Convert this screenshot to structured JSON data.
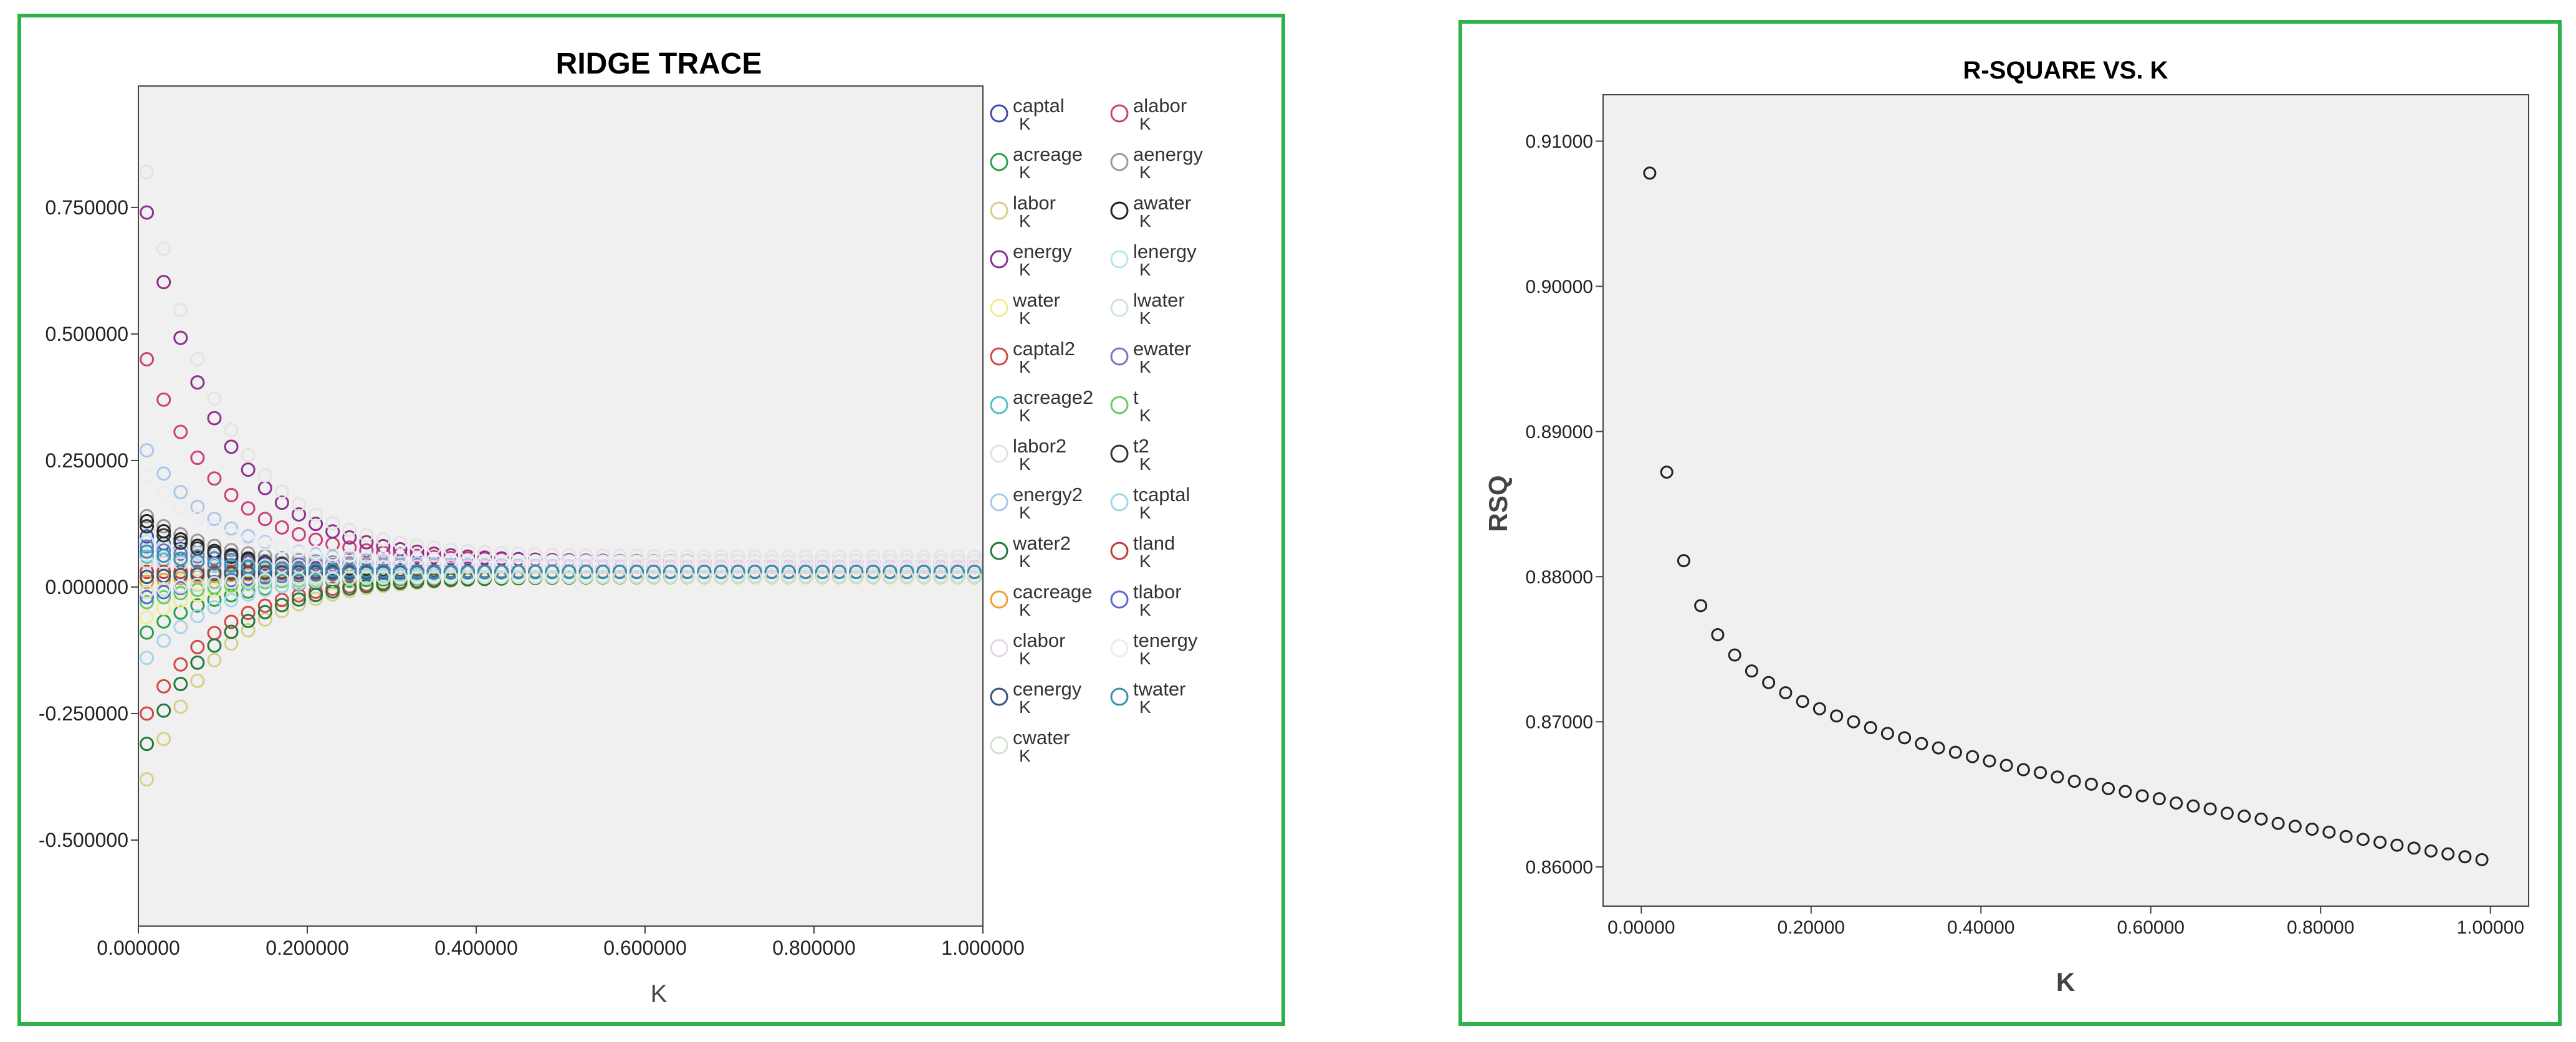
{
  "chart_data": [
    {
      "type": "scatter",
      "title": "RIDGE TRACE",
      "xlabel": "K",
      "ylabel": "",
      "xlim": [
        0.0,
        1.0
      ],
      "ylim": [
        -0.67,
        0.99
      ],
      "xticks": [
        0.0,
        0.2,
        0.4,
        0.6,
        0.8,
        1.0
      ],
      "xtick_labels": [
        "0.000000",
        "0.200000",
        "0.400000",
        "0.600000",
        "0.800000",
        "1.000000"
      ],
      "yticks": [
        0.75,
        0.5,
        0.25,
        0.0,
        -0.25,
        -0.5
      ],
      "ytick_labels": [
        "0.750000",
        "0.500000",
        "0.250000",
        "0.000000",
        "-0.250000",
        "-0.500000"
      ],
      "x": [
        0.01,
        0.03,
        0.05,
        0.07,
        0.09,
        0.11,
        0.13,
        0.15,
        0.17,
        0.19,
        0.21,
        0.23,
        0.25,
        0.27,
        0.29,
        0.31,
        0.33,
        0.35,
        0.37,
        0.39,
        0.41,
        0.43,
        0.45,
        0.47,
        0.49,
        0.51,
        0.53,
        0.55,
        0.57,
        0.59,
        0.61,
        0.63,
        0.65,
        0.67,
        0.69,
        0.71,
        0.73,
        0.75,
        0.77,
        0.79,
        0.81,
        0.83,
        0.85,
        0.87,
        0.89,
        0.91,
        0.93,
        0.95,
        0.97,
        0.99
      ],
      "legend_position": "right",
      "legend_sublabel": "K",
      "series": [
        {
          "name": "captal",
          "color": "#3a4fa8",
          "start": 0.1,
          "end": 0.03
        },
        {
          "name": "alabor",
          "color": "#cc3f7a",
          "start": 0.45,
          "end": 0.05
        },
        {
          "name": "acreage",
          "color": "#27a344",
          "start": -0.09,
          "end": 0.02
        },
        {
          "name": "aenergy",
          "color": "#9a9a9a",
          "start": 0.14,
          "end": 0.04
        },
        {
          "name": "labor",
          "color": "#d8cf86",
          "start": -0.38,
          "end": 0.02
        },
        {
          "name": "awater",
          "color": "#222222",
          "start": 0.13,
          "end": 0.03
        },
        {
          "name": "energy",
          "color": "#8e2f8e",
          "start": 0.74,
          "end": 0.05
        },
        {
          "name": "lenergy",
          "color": "#b5e8ec",
          "start": 0.09,
          "end": 0.04
        },
        {
          "name": "water",
          "color": "#f2ec8a",
          "start": -0.06,
          "end": 0.03
        },
        {
          "name": "lwater",
          "color": "#cfe6cf",
          "start": 0.04,
          "end": 0.03
        },
        {
          "name": "captal2",
          "color": "#d64545",
          "start": -0.25,
          "end": 0.02
        },
        {
          "name": "ewater",
          "color": "#7777c4",
          "start": 0.08,
          "end": 0.04
        },
        {
          "name": "acreage2",
          "color": "#4fc3c3",
          "start": 0.06,
          "end": 0.03
        },
        {
          "name": "t",
          "color": "#66cc66",
          "start": -0.03,
          "end": 0.02
        },
        {
          "name": "labor2",
          "color": "#e3e3e3",
          "start": 0.82,
          "end": 0.06
        },
        {
          "name": "t2",
          "color": "#333333",
          "start": 0.12,
          "end": 0.03
        },
        {
          "name": "energy2",
          "color": "#a9c8ec",
          "start": 0.27,
          "end": 0.04
        },
        {
          "name": "tcaptal",
          "color": "#a6d4ef",
          "start": -0.14,
          "end": 0.03
        },
        {
          "name": "water2",
          "color": "#1f7a3a",
          "start": -0.31,
          "end": 0.02
        },
        {
          "name": "tland",
          "color": "#c03a3a",
          "start": 0.03,
          "end": 0.03
        },
        {
          "name": "cacreage",
          "color": "#f0a030",
          "start": 0.01,
          "end": 0.03
        },
        {
          "name": "tlabor",
          "color": "#5a6ad0",
          "start": -0.02,
          "end": 0.03
        },
        {
          "name": "clabor",
          "color": "#ead2ea",
          "start": 0.05,
          "end": 0.04
        },
        {
          "name": "tenergy",
          "color": "#ebebf2",
          "start": 0.22,
          "end": 0.05
        },
        {
          "name": "cenergy",
          "color": "#34567a",
          "start": 0.02,
          "end": 0.03
        },
        {
          "name": "twater",
          "color": "#3a8fb0",
          "start": 0.07,
          "end": 0.03
        },
        {
          "name": "cwater",
          "color": "#cfe6cf",
          "start": -0.01,
          "end": 0.02
        }
      ]
    },
    {
      "type": "scatter",
      "title": "R-SQUARE VS. K",
      "xlabel": "K",
      "ylabel": "RSQ",
      "xlim": [
        -0.045,
        1.045
      ],
      "ylim": [
        0.8573,
        0.9132
      ],
      "xticks": [
        0.0,
        0.2,
        0.4,
        0.6,
        0.8,
        1.0
      ],
      "xtick_labels": [
        "0.00000",
        "0.20000",
        "0.40000",
        "0.60000",
        "0.80000",
        "1.00000"
      ],
      "yticks": [
        0.91,
        0.9,
        0.89,
        0.88,
        0.87,
        0.86
      ],
      "ytick_labels": [
        "0.91000",
        "0.90000",
        "0.89000",
        "0.88000",
        "0.87000",
        "0.86000"
      ],
      "marker_color": "#222222",
      "x": [
        0.01,
        0.03,
        0.05,
        0.07,
        0.09,
        0.11,
        0.13,
        0.15,
        0.17,
        0.19,
        0.21,
        0.23,
        0.25,
        0.27,
        0.29,
        0.31,
        0.33,
        0.35,
        0.37,
        0.39,
        0.41,
        0.43,
        0.45,
        0.47,
        0.49,
        0.51,
        0.53,
        0.55,
        0.57,
        0.59,
        0.61,
        0.63,
        0.65,
        0.67,
        0.69,
        0.71,
        0.73,
        0.75,
        0.77,
        0.79,
        0.81,
        0.83,
        0.85,
        0.87,
        0.89,
        0.91,
        0.93,
        0.95,
        0.97,
        0.99
      ],
      "y": [
        0.9078,
        0.8872,
        0.8811,
        0.878,
        0.876,
        0.8746,
        0.8735,
        0.8727,
        0.872,
        0.8714,
        0.8709,
        0.8704,
        0.87,
        0.8696,
        0.8692,
        0.8689,
        0.8685,
        0.8682,
        0.8679,
        0.8676,
        0.8673,
        0.867,
        0.8667,
        0.8665,
        0.8662,
        0.8659,
        0.8657,
        0.8654,
        0.8652,
        0.8649,
        0.8647,
        0.8644,
        0.8642,
        0.864,
        0.8637,
        0.8635,
        0.8633,
        0.863,
        0.8628,
        0.8626,
        0.8624,
        0.8621,
        0.8619,
        0.8617,
        0.8615,
        0.8613,
        0.8611,
        0.8609,
        0.8607,
        0.8605
      ]
    }
  ],
  "colors": {
    "frame_border": "#2db24a",
    "plot_background": "#f0f0f0"
  }
}
